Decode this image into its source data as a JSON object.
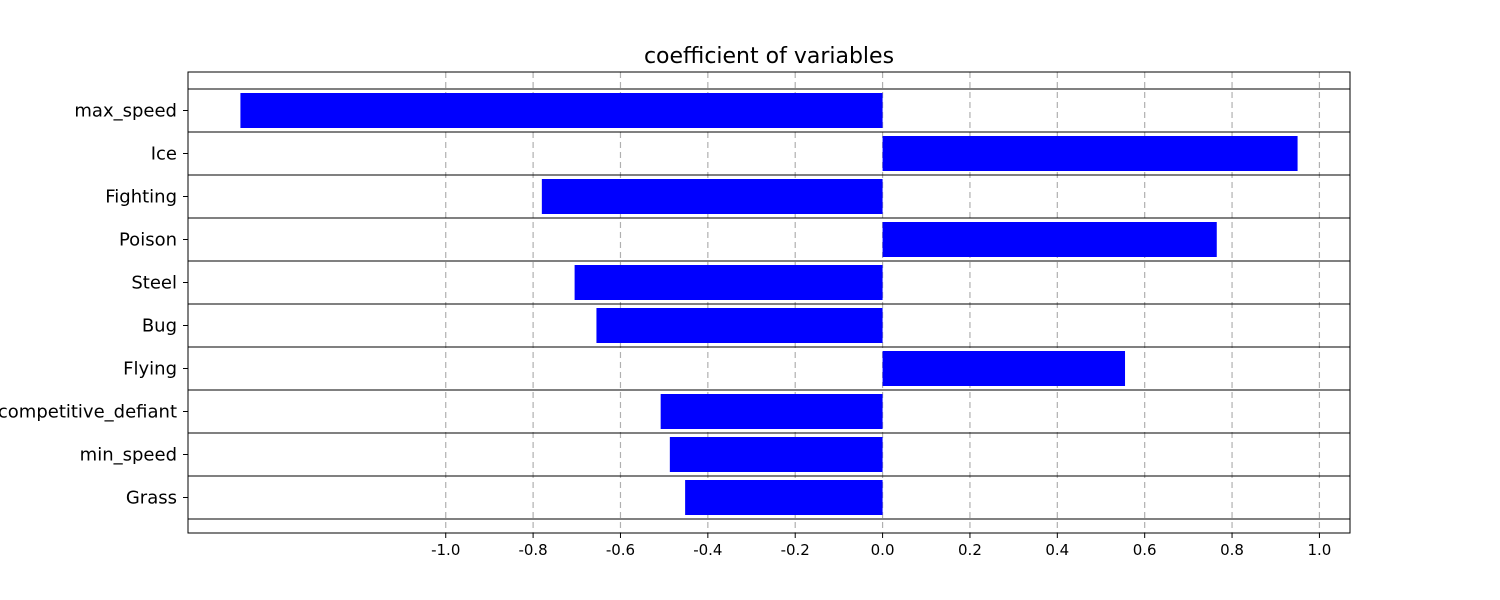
{
  "chart_data": {
    "type": "bar",
    "orientation": "horizontal",
    "title": "coefficient of variables",
    "xlabel": "",
    "ylabel": "",
    "categories": [
      "max_speed",
      "Ice",
      "Fighting",
      "Poison",
      "Steel",
      "Bug",
      "Flying",
      "competitive_defiant",
      "min_speed",
      "Grass"
    ],
    "values": [
      -1.47,
      0.95,
      -0.78,
      0.765,
      -0.705,
      -0.655,
      0.555,
      -0.508,
      -0.487,
      -0.452
    ],
    "xlim": [
      -1.59,
      1.07
    ],
    "xticks": [
      -1.0,
      -0.8,
      -0.6,
      -0.4,
      -0.2,
      0.0,
      0.2,
      0.4,
      0.6,
      0.8,
      1.0
    ],
    "xtick_labels": [
      "-1.0",
      "-0.8",
      "-0.6",
      "-0.4",
      "-0.2",
      "0.0",
      "0.2",
      "0.4",
      "0.6",
      "0.8",
      "1.0"
    ],
    "grid": "x-dashed",
    "bar_color": "#0000ff",
    "legend": "none"
  }
}
